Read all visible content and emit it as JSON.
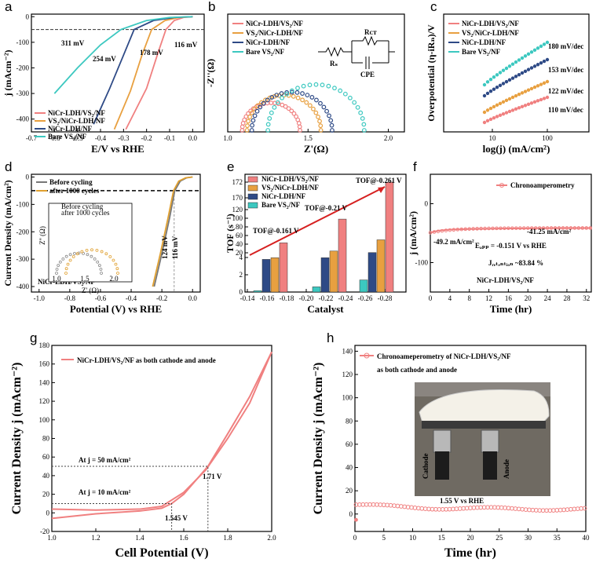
{
  "colors": {
    "nicr_vs2": "#f08080",
    "vs2_nicr": "#e8a040",
    "nicr": "#2e4a86",
    "bare_vs2": "#3cc8c0",
    "tof_trend": "#d62020",
    "ca_axis_note": "#1f4e9b"
  },
  "panels": [
    {
      "id": "a",
      "letter": "a",
      "xlabel": "E/V vs RHE",
      "ylabel": "j (mAcm⁻²)",
      "xticks": [
        "-0.7",
        "-0.6",
        "-0.5",
        "-0.4",
        "-0.3",
        "-0.2",
        "-0.1",
        "0.0"
      ],
      "yticks": [
        "0",
        "-100",
        "-200",
        "-300",
        "-400"
      ],
      "legend": [
        "NiCr-LDH/VS₂/NF",
        "VS₂/NiCr-LDH/NF",
        "NiCr-LDH/NF",
        "Bare VS₂/NF"
      ],
      "annotations": [
        "311 mV",
        "254 mV",
        "178 mV",
        "116 mV"
      ]
    },
    {
      "id": "b",
      "letter": "b",
      "xlabel": "Z'(Ω)",
      "ylabel": "-Z''(Ω)",
      "xticks": [
        "1.0",
        "1.5",
        "2.0"
      ],
      "yticks": [],
      "legend": [
        "NiCr-LDH/VS₂/NF",
        "VS₂/NiCr-LDH/NF",
        "NiCr-LDH/NF",
        "Bare VS₂/NF"
      ],
      "circuit_labels": [
        "Rₛ",
        "Rᴄᴛ",
        "CPE"
      ]
    },
    {
      "id": "c",
      "letter": "c",
      "xlabel": "log(j) (mA/cm²)",
      "ylabel": "Overpotential (η-iRₙ)/V",
      "xticks": [
        "10",
        "100"
      ],
      "yticks": [],
      "legend": [
        "NiCr-LDH/VS₂/NF",
        "VS₂/NiCr-LDH/NF",
        "NiCr-LDH/NF",
        "Bare VS₂/NF"
      ],
      "slopes": [
        "180 mV/dec",
        "153 mV/dec",
        "122 mV/dec",
        "110 mV/dec"
      ]
    },
    {
      "id": "d",
      "letter": "d",
      "xlabel": "Potential (V) vs RHE",
      "ylabel": "Current Density (mA/cm²)",
      "xticks": [
        "-1.0",
        "-0.8",
        "-0.6",
        "-0.4",
        "-0.2",
        "0.0"
      ],
      "yticks": [
        "0",
        "-100",
        "-200",
        "-300",
        "-400"
      ],
      "legend": [
        "Before cycling",
        "after 1000 cycles"
      ],
      "inset_legend": [
        "Before cycling",
        "after 1000 cycles"
      ],
      "inset_xlabel": "Z' (Ω)",
      "inset_ylabel": "Z'' (Ω)",
      "inset_xticks": [
        "1.0",
        "1.5",
        "2.0"
      ],
      "sample": "NiCr-LDH/VS₂/NF",
      "annotations": [
        "124 mV",
        "116 mV"
      ]
    },
    {
      "id": "e",
      "letter": "e",
      "xlabel": "Catalyst",
      "ylabel": "TOF (s⁻¹)",
      "xticks": [
        "-0.14",
        "-0.16",
        "-0.18",
        "-0.20",
        "-0.22",
        "-0.24",
        "-0.26",
        "-0.28"
      ],
      "yticks": [
        "0",
        "2",
        "4",
        "20",
        "40",
        "60",
        "80",
        "100",
        "120",
        "170",
        "172"
      ],
      "legend": [
        "NiCr-LDH/VS₂/NF",
        "VS₂/NiCr-LDH/NF",
        "NiCr-LDH/NF",
        "Bare VS₂/NF"
      ],
      "annotations": [
        "TOF@-0.161 V",
        "TOF@-0.21 V",
        "TOF@-0.261 V"
      ]
    },
    {
      "id": "f",
      "letter": "f",
      "xlabel": "Time (hr)",
      "ylabel": "j (mA/cm²)",
      "xticks": [
        "0",
        "4",
        "8",
        "12",
        "16",
        "20",
        "24",
        "28",
        "32"
      ],
      "yticks": [
        "0",
        "-100"
      ],
      "legend": [
        "Chronoamperometry"
      ],
      "annotations": [
        "-49.2 mA/cm²",
        "-41.25 mA/cm²",
        "Eₐₚₚ = -0.151 V vs RHE",
        "Jᵣₑₜₑₙₜᵢₒₙ ~83.84 %"
      ],
      "sample": "NiCr-LDH/VS₂/NF"
    },
    {
      "id": "g",
      "letter": "g",
      "xlabel": "Cell Potential (V)",
      "ylabel": "Current Density j (mAcm⁻²)",
      "xticks": [
        "1.0",
        "1.2",
        "1.4",
        "1.6",
        "1.8",
        "2.0"
      ],
      "yticks": [
        "-20",
        "0",
        "20",
        "40",
        "60",
        "80",
        "100",
        "120",
        "140",
        "160",
        "180"
      ],
      "legend": [
        "NiCr-LDH/VS₂/NF as both cathode and anode"
      ],
      "annotations": [
        "At j = 50 mA/cm²",
        "At j = 10 mA/cm²",
        "1.71 V",
        "1.545 V"
      ]
    },
    {
      "id": "h",
      "letter": "h",
      "xlabel": "Time (hr)",
      "ylabel": "Current Density j (mAcm⁻²)",
      "xticks": [
        "0",
        "5",
        "10",
        "15",
        "20",
        "25",
        "30",
        "35",
        "40"
      ],
      "yticks": [
        "0",
        "20",
        "40",
        "60",
        "80",
        "100",
        "120",
        "140"
      ],
      "legend": [
        "Chronoameperometry of NiCr-LDH/VS₂/NF",
        "as both cathode and anode"
      ],
      "annotations": [
        "1.55 V vs RHE"
      ],
      "photo_labels": [
        "Cathode",
        "Anode"
      ]
    }
  ],
  "chart_data": [
    {
      "type": "line",
      "panel": "a",
      "xlim": [
        -0.7,
        0.05
      ],
      "ylim": [
        -450,
        10
      ],
      "series": [
        {
          "name": "NiCr-LDH/VS₂/NF",
          "x": [
            -0.29,
            -0.2,
            -0.15,
            -0.116,
            -0.08,
            -0.04,
            0.0
          ],
          "y": [
            -440,
            -280,
            -140,
            -50,
            -15,
            -3,
            0
          ]
        },
        {
          "name": "VS₂/NiCr-LDH/NF",
          "x": [
            -0.34,
            -0.27,
            -0.22,
            -0.178,
            -0.12,
            -0.06,
            0.0
          ],
          "y": [
            -440,
            -290,
            -150,
            -50,
            -15,
            -3,
            0
          ]
        },
        {
          "name": "NiCr-LDH/NF",
          "x": [
            -0.43,
            -0.36,
            -0.3,
            -0.254,
            -0.17,
            -0.08,
            0.0
          ],
          "y": [
            -420,
            -280,
            -150,
            -50,
            -15,
            -3,
            0
          ]
        },
        {
          "name": "Bare VS₂/NF",
          "x": [
            -0.6,
            -0.5,
            -0.4,
            -0.311,
            -0.2,
            -0.1,
            0.0
          ],
          "y": [
            -300,
            -200,
            -110,
            -50,
            -15,
            -3,
            0
          ]
        }
      ]
    },
    {
      "type": "scatter",
      "panel": "b",
      "xlim": [
        1.0,
        2.1
      ],
      "ylim": [
        0,
        0.9
      ],
      "series": [
        {
          "name": "NiCr-LDH/VS₂/NF",
          "x0": 1.09,
          "x1": 1.45
        },
        {
          "name": "VS₂/NiCr-LDH/NF",
          "x0": 1.12,
          "x1": 1.58
        },
        {
          "name": "NiCr-LDH/NF",
          "x0": 1.15,
          "x1": 1.65
        },
        {
          "name": "Bare VS₂/NF",
          "x0": 1.25,
          "x1": 1.85
        }
      ]
    },
    {
      "type": "scatter",
      "panel": "c",
      "xlim": [
        0.7,
        2.4
      ],
      "ylim": [
        0,
        0.5
      ],
      "series": [
        {
          "name": "NiCr-LDH/VS₂/NF",
          "slope_mV_dec": 110
        },
        {
          "name": "VS₂/NiCr-LDH/NF",
          "slope_mV_dec": 122
        },
        {
          "name": "NiCr-LDH/NF",
          "slope_mV_dec": 153
        },
        {
          "name": "Bare VS₂/NF",
          "slope_mV_dec": 180
        }
      ]
    },
    {
      "type": "line",
      "panel": "d",
      "xlim": [
        -1.05,
        0.05
      ],
      "ylim": [
        -420,
        10
      ],
      "series": [
        {
          "name": "Before cycling",
          "x": [
            -0.25,
            -0.2,
            -0.15,
            -0.116,
            -0.08,
            -0.04,
            0.0
          ],
          "y": [
            -400,
            -280,
            -150,
            -50,
            -15,
            -3,
            0
          ]
        },
        {
          "name": "after 1000 cycles",
          "x": [
            -0.26,
            -0.21,
            -0.16,
            -0.124,
            -0.09,
            -0.045,
            0.0
          ],
          "y": [
            -400,
            -280,
            -150,
            -50,
            -15,
            -3,
            0
          ]
        }
      ]
    },
    {
      "type": "bar",
      "panel": "e",
      "categories": [
        "-0.161",
        "-0.21",
        "-0.261"
      ],
      "series": [
        {
          "name": "Bare VS₂/NF",
          "values": [
            0.15,
            0.6,
            1.4
          ]
        },
        {
          "name": "NiCr-LDH/NF",
          "values": [
            4.7,
            8.5,
            20.5
          ]
        },
        {
          "name": "VS₂/NiCr-LDH/NF",
          "values": [
            8.5,
            24,
            50
          ]
        },
        {
          "name": "NiCr-LDH/VS₂/NF",
          "values": [
            43,
            98,
            172
          ]
        }
      ]
    },
    {
      "type": "line",
      "panel": "f",
      "xlim": [
        0,
        33
      ],
      "ylim": [
        -150,
        50
      ],
      "series": [
        {
          "name": "Chronoamperometry",
          "x": [
            0,
            1,
            2,
            4,
            8,
            12,
            16,
            20,
            24,
            28,
            32,
            33
          ],
          "y": [
            -49.2,
            -47,
            -45.5,
            -44,
            -43,
            -42.5,
            -42,
            -41.8,
            -41.5,
            -41.4,
            -41.3,
            -41.25
          ]
        }
      ]
    },
    {
      "type": "line",
      "panel": "g",
      "xlim": [
        1.0,
        2.0
      ],
      "ylim": [
        -20,
        180
      ],
      "series": [
        {
          "name": "forward",
          "x": [
            1.0,
            1.2,
            1.4,
            1.5,
            1.545,
            1.6,
            1.71,
            1.8,
            1.9,
            2.0
          ],
          "y": [
            -6,
            -1,
            2,
            5,
            10,
            20,
            50,
            85,
            125,
            173
          ]
        },
        {
          "name": "reverse",
          "x": [
            2.0,
            1.9,
            1.8,
            1.7,
            1.6,
            1.5,
            1.4,
            1.2,
            1.0
          ],
          "y": [
            173,
            118,
            80,
            46,
            22,
            7,
            4,
            3,
            4
          ]
        }
      ]
    },
    {
      "type": "scatter",
      "panel": "h",
      "xlim": [
        0,
        40
      ],
      "ylim": [
        -10,
        140
      ],
      "series": [
        {
          "name": "Chronoameperometry of NiCr-LDH/VS₂/NF",
          "x": [
            0,
            1,
            3,
            5,
            10,
            15,
            20,
            25,
            30,
            35,
            40
          ],
          "y": [
            8,
            9,
            7,
            6,
            5,
            4,
            5,
            5,
            4,
            4,
            4
          ]
        }
      ]
    }
  ]
}
